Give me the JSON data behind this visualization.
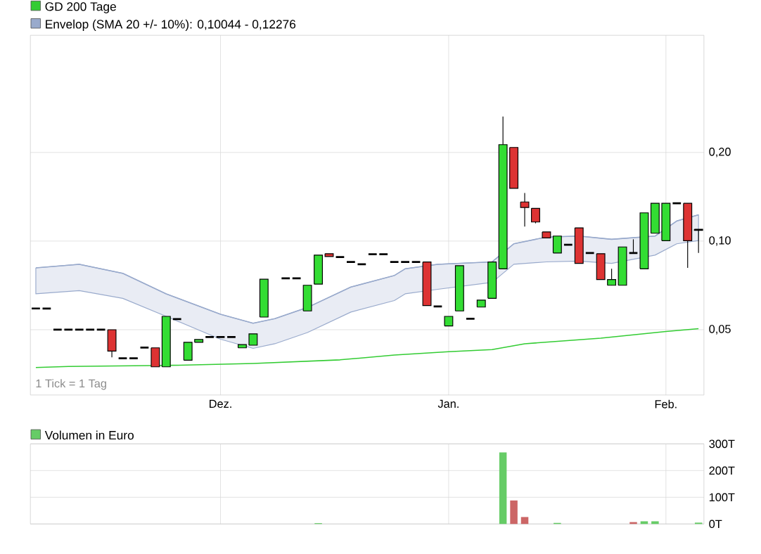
{
  "chart_data": [
    {
      "type": "candlestick",
      "categories": [
        null,
        null,
        null,
        null,
        null,
        null,
        null,
        null,
        null,
        null,
        null,
        null,
        null,
        null,
        null,
        null,
        null,
        "Dez.",
        null,
        null,
        null,
        null,
        null,
        null,
        null,
        null,
        null,
        null,
        null,
        null,
        null,
        null,
        null,
        null,
        null,
        null,
        null,
        null,
        "Jan.",
        null,
        null,
        null,
        null,
        null,
        null,
        null,
        null,
        null,
        null,
        null,
        null,
        null,
        null,
        null,
        null,
        null,
        null,
        null,
        "Feb.",
        null,
        null,
        null
      ],
      "series": [
        {
          "type": "candlestick",
          "ohlc": [
            [
              0.059,
              0.059,
              0.059,
              0.059
            ],
            [
              0.059,
              0.059,
              0.059,
              0.059
            ],
            [
              0.05,
              0.05,
              0.05,
              0.05
            ],
            [
              0.05,
              0.05,
              0.05,
              0.05
            ],
            [
              0.05,
              0.05,
              0.05,
              0.05
            ],
            [
              0.05,
              0.05,
              0.05,
              0.05
            ],
            [
              0.05,
              0.05,
              0.05,
              0.05
            ],
            [
              0.05,
              0.05,
              0.0403,
              0.0423
            ],
            [
              0.04,
              0.04,
              0.04,
              0.04
            ],
            [
              0.04,
              0.04,
              0.04,
              0.04
            ],
            [
              0.0435,
              0.0435,
              0.0435,
              0.0435
            ],
            [
              0.0434,
              0.0434,
              0.0374,
              0.0374
            ],
            [
              0.0374,
              0.0555,
              0.0374,
              0.0555
            ],
            [
              0.0543,
              0.0543,
              0.0543,
              0.0543
            ],
            [
              0.0394,
              0.0453,
              0.0394,
              0.0453
            ],
            [
              0.0453,
              0.0463,
              0.0453,
              0.0463
            ],
            [
              0.0472,
              0.0472,
              0.0472,
              0.0472
            ],
            [
              0.0472,
              0.0472,
              0.0472,
              0.0472
            ],
            [
              0.0472,
              0.0472,
              0.0472,
              0.0472
            ],
            [
              0.0434,
              0.0445,
              0.0434,
              0.0445
            ],
            [
              0.0443,
              0.0484,
              0.0443,
              0.0484
            ],
            [
              0.0552,
              0.0742,
              0.0552,
              0.0742
            ],
            null,
            [
              0.0747,
              0.0747,
              0.0747,
              0.0747
            ],
            [
              0.0747,
              0.0747,
              0.0747,
              0.0747
            ],
            [
              0.0579,
              0.0708,
              0.0579,
              0.0708
            ],
            [
              0.0714,
              0.0896,
              0.0714,
              0.0896
            ],
            [
              0.0906,
              0.0906,
              0.0886,
              0.0886
            ],
            [
              0.0883,
              0.0883,
              0.0883,
              0.0883
            ],
            [
              0.0849,
              0.0849,
              0.0849,
              0.0849
            ],
            [
              0.0834,
              0.0834,
              0.0834,
              0.0834
            ],
            [
              0.0902,
              0.0902,
              0.0902,
              0.0902
            ],
            [
              0.0902,
              0.0902,
              0.0902,
              0.0902
            ],
            [
              0.0849,
              0.0849,
              0.0849,
              0.0849
            ],
            [
              0.0849,
              0.0849,
              0.0849,
              0.0849
            ],
            [
              0.0849,
              0.0849,
              0.0849,
              0.0849
            ],
            [
              0.0849,
              0.0849,
              0.0604,
              0.0604
            ],
            [
              0.06,
              0.06,
              0.06,
              0.06
            ],
            [
              0.0515,
              0.0555,
              0.0515,
              0.0555
            ],
            [
              0.0579,
              0.0825,
              0.0579,
              0.0825
            ],
            [
              0.0545,
              0.0545,
              0.0545,
              0.0545
            ],
            [
              0.0597,
              0.063,
              0.0597,
              0.063
            ],
            [
              0.0639,
              0.0849,
              0.0639,
              0.0849
            ],
            [
              0.0805,
              0.2648,
              0.0805,
              0.2126
            ],
            [
              0.208,
              0.208,
              0.151,
              0.151
            ],
            [
              0.1358,
              0.1457,
              0.1121,
              0.13
            ],
            [
              0.1292,
              0.1292,
              0.1149,
              0.1161
            ],
            [
              0.1074,
              0.1074,
              0.1025,
              0.1025
            ],
            [
              0.0911,
              0.104,
              0.0911,
              0.104
            ],
            [
              0.0972,
              0.0972,
              0.0972,
              0.0972
            ],
            [
              0.1109,
              0.1109,
              0.084,
              0.084
            ],
            [
              0.0911,
              0.0911,
              0.0911,
              0.0911
            ],
            [
              0.0906,
              0.0906,
              0.074,
              0.074
            ],
            [
              0.0708,
              0.0805,
              0.0708,
              0.074
            ],
            [
              0.0708,
              0.0955,
              0.0708,
              0.0955
            ],
            [
              0.0911,
              0.1014,
              0.0911,
              0.0911
            ],
            [
              0.0805,
              0.1247,
              0.0805,
              0.1247
            ],
            [
              0.1063,
              0.1344,
              0.1063,
              0.1344
            ],
            [
              0.1003,
              0.1344,
              0.1003,
              0.1344
            ],
            [
              0.1344,
              0.1344,
              0.1344,
              0.1344
            ],
            [
              0.1344,
              0.1344,
              0.0811,
              0.1003
            ],
            [
              0.1097,
              0.1097,
              0.0911,
              0.1088
            ]
          ],
          "colors": [
            "#000000",
            "#000000",
            "#000000",
            "#000000",
            "#000000",
            "#000000",
            "#000000",
            "#dd3333",
            "#000000",
            "#000000",
            "#000000",
            "#dd3333",
            "#33dd33",
            "#000000",
            "#33dd33",
            "#33dd33",
            "#000000",
            "#000000",
            "#000000",
            "#33dd33",
            "#33dd33",
            "#33dd33",
            null,
            "#000000",
            "#000000",
            "#33dd33",
            "#33dd33",
            "#dd3333",
            "#000000",
            "#000000",
            "#000000",
            "#000000",
            "#000000",
            "#000000",
            "#000000",
            "#000000",
            "#dd3333",
            "#000000",
            "#33dd33",
            "#33dd33",
            "#000000",
            "#33dd33",
            "#33dd33",
            "#33dd33",
            "#dd3333",
            "#dd3333",
            "#dd3333",
            "#dd3333",
            "#33dd33",
            "#000000",
            "#dd3333",
            "#000000",
            "#dd3333",
            "#33dd33",
            "#33dd33",
            "#000000",
            "#33dd33",
            "#33dd33",
            "#33dd33",
            "#000000",
            "#dd3333",
            "#000000"
          ]
        },
        {
          "name": "GD 200 Tage",
          "type": "line",
          "color": "#33cc33",
          "values": [
            0.0372,
            null,
            null,
            0.0375,
            null,
            null,
            null,
            null,
            null,
            null,
            null,
            null,
            0.0378,
            null,
            null,
            null,
            null,
            null,
            null,
            null,
            0.0384,
            null,
            null,
            null,
            null,
            null,
            null,
            null,
            0.0395,
            null,
            null,
            null,
            null,
            0.041,
            null,
            null,
            null,
            null,
            0.0421,
            null,
            null,
            null,
            0.0428,
            null,
            null,
            0.0448,
            null,
            null,
            null,
            null,
            null,
            null,
            0.0468,
            null,
            null,
            null,
            null,
            null,
            0.0493,
            null,
            null,
            0.0504
          ]
        },
        {
          "name": "Envelop (SMA 20 +/- 10%): 0,10044 - 0,12276",
          "type": "line",
          "color": "#99aacc",
          "upper": [
            0.0811,
            null,
            null,
            null,
            0.0834,
            null,
            null,
            null,
            0.0777,
            null,
            null,
            null,
            0.0662,
            null,
            null,
            null,
            null,
            0.0564,
            null,
            null,
            0.0526,
            null,
            0.0545,
            null,
            null,
            0.0595,
            null,
            null,
            null,
            0.0698,
            null,
            null,
            null,
            0.0764,
            0.0805,
            null,
            null,
            0.0834,
            null,
            null,
            null,
            null,
            0.085,
            null,
            0.0979,
            null,
            null,
            0.1032,
            null,
            null,
            0.104,
            null,
            null,
            0.1014,
            null,
            null,
            null,
            0.104,
            null,
            0.117,
            null,
            0.12276
          ],
          "values": [
            0.0811,
            null,
            null,
            null,
            0.0834,
            null,
            null,
            null,
            0.0777,
            null,
            null,
            null,
            0.0662,
            null,
            null,
            null,
            null,
            0.0564,
            null,
            null,
            0.0526,
            null,
            0.0545,
            null,
            null,
            0.0595,
            null,
            null,
            null,
            0.0698,
            null,
            null,
            null,
            0.0764,
            0.0805,
            null,
            null,
            0.0834,
            null,
            null,
            null,
            null,
            0.085,
            null,
            0.0979,
            null,
            null,
            0.1032,
            null,
            null,
            0.104,
            null,
            null,
            0.1014,
            null,
            null,
            null,
            0.104,
            null,
            0.117,
            null,
            0.12276
          ],
          "lower": [
            0.0662,
            null,
            null,
            null,
            0.0679,
            null,
            null,
            null,
            0.0639,
            null,
            null,
            null,
            0.0555,
            null,
            null,
            null,
            null,
            0.0464,
            null,
            null,
            0.0432,
            null,
            0.0448,
            null,
            null,
            0.0489,
            null,
            null,
            null,
            0.0574,
            null,
            null,
            null,
            0.0628,
            0.0662,
            null,
            null,
            0.0686,
            null,
            null,
            null,
            null,
            0.0724,
            null,
            0.0834,
            null,
            null,
            0.085,
            null,
            null,
            0.0855,
            null,
            null,
            0.084,
            null,
            null,
            null,
            0.0896,
            null,
            0.0979,
            null,
            0.10044
          ]
        }
      ],
      "log": "y",
      "ylim": [
        0.03,
        0.5
      ],
      "yticks": [
        {
          "value": 0.05,
          "label": "0,05"
        },
        {
          "value": 0.1,
          "label": "0,10"
        },
        {
          "value": 0.2,
          "label": "0,20"
        }
      ],
      "grid": true,
      "legend": "top left",
      "annotations": [
        "1 Tick = 1 Tag"
      ]
    },
    {
      "type": "bar",
      "categories": [
        null,
        null,
        null,
        null,
        null,
        null,
        null,
        null,
        null,
        null,
        null,
        null,
        null,
        null,
        null,
        null,
        null,
        null,
        null,
        null,
        null,
        null,
        null,
        null,
        null,
        null,
        null,
        null,
        null,
        null,
        null,
        null,
        null,
        null,
        null,
        null,
        null,
        null,
        null,
        null,
        null,
        null,
        null,
        null,
        null,
        null,
        null,
        null,
        null,
        null,
        null,
        null,
        null,
        null,
        null,
        null,
        null,
        null,
        null,
        null,
        null,
        null
      ],
      "series": [
        {
          "name": "Volumen in Euro",
          "color": "#66cc66",
          "values": [
            null,
            null,
            null,
            null,
            null,
            null,
            null,
            null,
            null,
            null,
            null,
            null,
            null,
            null,
            null,
            null,
            null,
            null,
            null,
            null,
            null,
            null,
            null,
            null,
            null,
            null,
            3,
            null,
            null,
            null,
            null,
            null,
            null,
            null,
            null,
            null,
            null,
            null,
            null,
            null,
            null,
            null,
            null,
            268,
            88,
            26,
            null,
            null,
            4,
            null,
            null,
            null,
            null,
            null,
            null,
            7,
            10,
            10,
            null,
            null,
            null,
            5
          ],
          "colors": [
            null,
            null,
            null,
            null,
            null,
            null,
            null,
            null,
            null,
            null,
            null,
            null,
            null,
            null,
            null,
            null,
            null,
            null,
            null,
            null,
            null,
            null,
            null,
            null,
            null,
            null,
            "#66cc66",
            null,
            null,
            null,
            null,
            null,
            null,
            null,
            null,
            null,
            null,
            null,
            null,
            null,
            null,
            null,
            null,
            "#66cc66",
            "#cc6666",
            "#cc6666",
            null,
            null,
            "#66cc66",
            null,
            null,
            null,
            null,
            null,
            null,
            "#cc6666",
            "#66cc66",
            "#66cc66",
            null,
            null,
            null,
            "#66cc66"
          ]
        }
      ],
      "ylim": [
        0,
        300
      ],
      "yticks": [
        {
          "value": 0,
          "label": "0T"
        },
        {
          "value": 100,
          "label": "100T"
        },
        {
          "value": 200,
          "label": "200T"
        },
        {
          "value": 300,
          "label": "300T"
        }
      ],
      "grid": true,
      "legend": "top left",
      "tick_labels": "y"
    }
  ]
}
